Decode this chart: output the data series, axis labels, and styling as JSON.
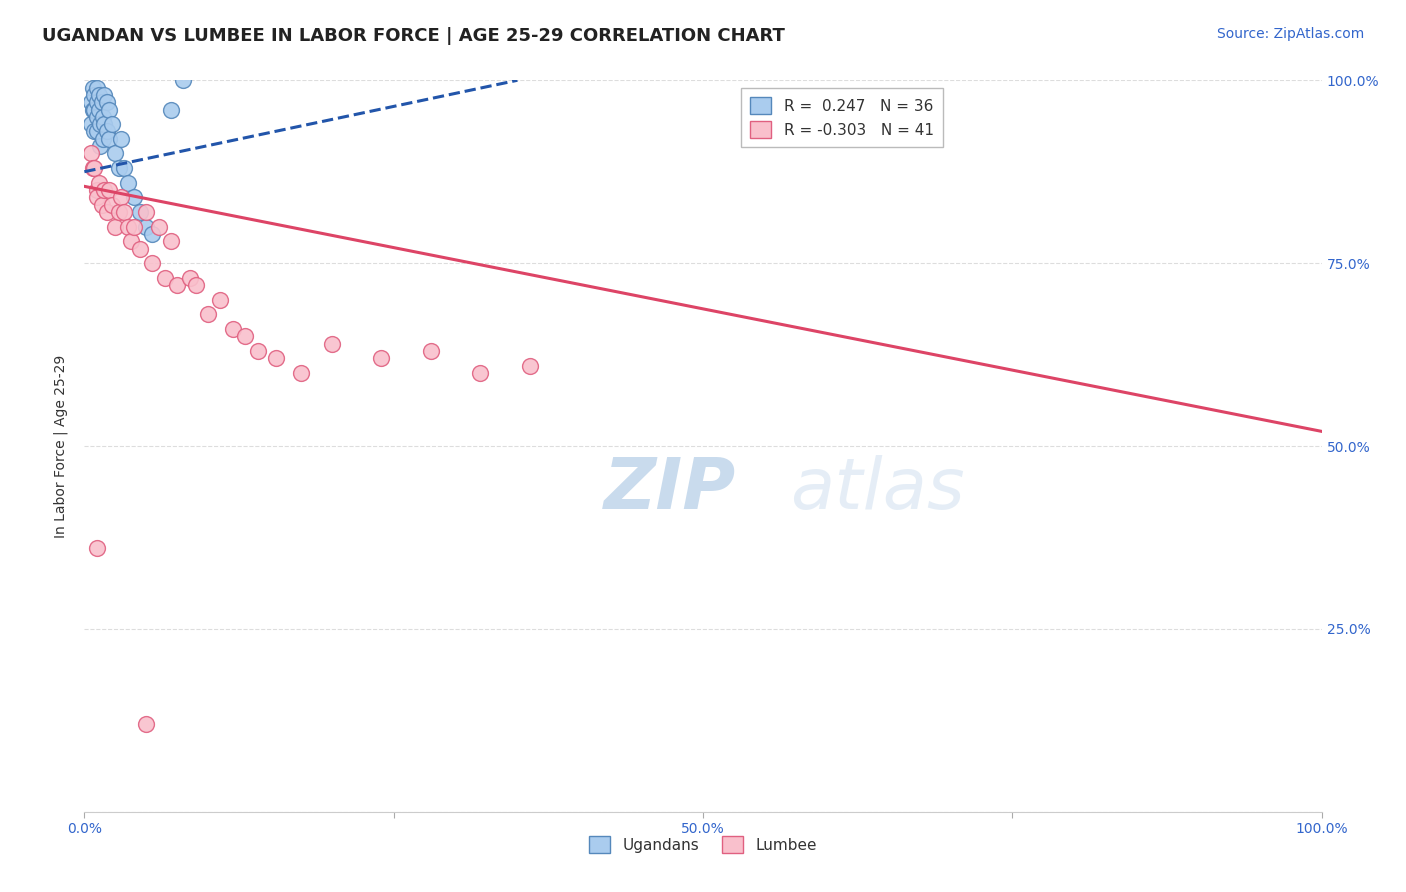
{
  "title": "UGANDAN VS LUMBEE IN LABOR FORCE | AGE 25-29 CORRELATION CHART",
  "source_text": "Source: ZipAtlas.com",
  "ylabel": "In Labor Force | Age 25-29",
  "xlim": [
    0.0,
    1.0
  ],
  "ylim": [
    0.0,
    1.0
  ],
  "ugandan_color": "#aaccee",
  "ugandan_edge_color": "#5588bb",
  "lumbee_color": "#f9c0cc",
  "lumbee_edge_color": "#e06080",
  "trend_ugandan_color": "#2255aa",
  "trend_lumbee_color": "#dd4466",
  "r_ugandan": 0.247,
  "n_ugandan": 36,
  "r_lumbee": -0.303,
  "n_lumbee": 41,
  "ugandan_x": [
    0.005,
    0.005,
    0.007,
    0.007,
    0.008,
    0.008,
    0.008,
    0.01,
    0.01,
    0.01,
    0.01,
    0.012,
    0.012,
    0.013,
    0.013,
    0.014,
    0.015,
    0.015,
    0.016,
    0.016,
    0.018,
    0.018,
    0.02,
    0.02,
    0.022,
    0.025,
    0.028,
    0.03,
    0.032,
    0.035,
    0.04,
    0.045,
    0.05,
    0.055,
    0.07,
    0.08
  ],
  "ugandan_y": [
    0.97,
    0.94,
    0.99,
    0.96,
    0.98,
    0.96,
    0.93,
    0.99,
    0.97,
    0.95,
    0.93,
    0.98,
    0.96,
    0.94,
    0.91,
    0.97,
    0.95,
    0.92,
    0.98,
    0.94,
    0.97,
    0.93,
    0.96,
    0.92,
    0.94,
    0.9,
    0.88,
    0.92,
    0.88,
    0.86,
    0.84,
    0.82,
    0.8,
    0.79,
    0.96,
    1.0
  ],
  "lumbee_x": [
    0.005,
    0.007,
    0.008,
    0.01,
    0.01,
    0.012,
    0.014,
    0.016,
    0.018,
    0.02,
    0.022,
    0.025,
    0.028,
    0.03,
    0.032,
    0.035,
    0.038,
    0.04,
    0.045,
    0.05,
    0.055,
    0.06,
    0.065,
    0.07,
    0.075,
    0.085,
    0.09,
    0.1,
    0.11,
    0.12,
    0.13,
    0.14,
    0.155,
    0.175,
    0.2,
    0.24,
    0.28,
    0.32,
    0.36,
    0.01,
    0.05
  ],
  "lumbee_y": [
    0.9,
    0.88,
    0.88,
    0.85,
    0.84,
    0.86,
    0.83,
    0.85,
    0.82,
    0.85,
    0.83,
    0.8,
    0.82,
    0.84,
    0.82,
    0.8,
    0.78,
    0.8,
    0.77,
    0.82,
    0.75,
    0.8,
    0.73,
    0.78,
    0.72,
    0.73,
    0.72,
    0.68,
    0.7,
    0.66,
    0.65,
    0.63,
    0.62,
    0.6,
    0.64,
    0.62,
    0.63,
    0.6,
    0.61,
    0.36,
    0.12
  ],
  "watermark_zip": "ZIP",
  "watermark_atlas": "atlas",
  "background_color": "#ffffff",
  "grid_color": "#dddddd",
  "title_fontsize": 13,
  "axis_label_fontsize": 10,
  "tick_fontsize": 10,
  "legend_fontsize": 11,
  "source_fontsize": 10
}
